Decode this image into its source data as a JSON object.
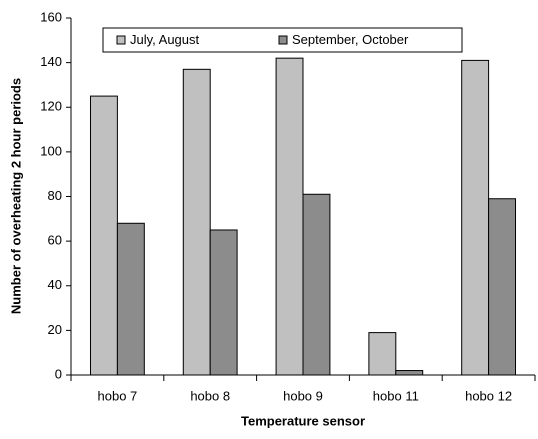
{
  "chart_data": {
    "type": "bar",
    "x_label": "Temperature sensor",
    "y_label": "Number of overheating 2 hour periods",
    "categories": [
      "hobo 7",
      "hobo 8",
      "hobo 9",
      "hobo 11",
      "hobo 12"
    ],
    "series": [
      {
        "name": "July, August",
        "color": "#c0c0c0",
        "values": [
          125,
          137,
          142,
          19,
          141
        ]
      },
      {
        "name": "September, October",
        "color": "#8c8c8c",
        "values": [
          68,
          65,
          81,
          2,
          79
        ]
      }
    ],
    "ylim": [
      0,
      160
    ],
    "yticks": [
      0,
      20,
      40,
      60,
      80,
      100,
      120,
      140,
      160
    ],
    "grid": false,
    "legend": "top"
  }
}
